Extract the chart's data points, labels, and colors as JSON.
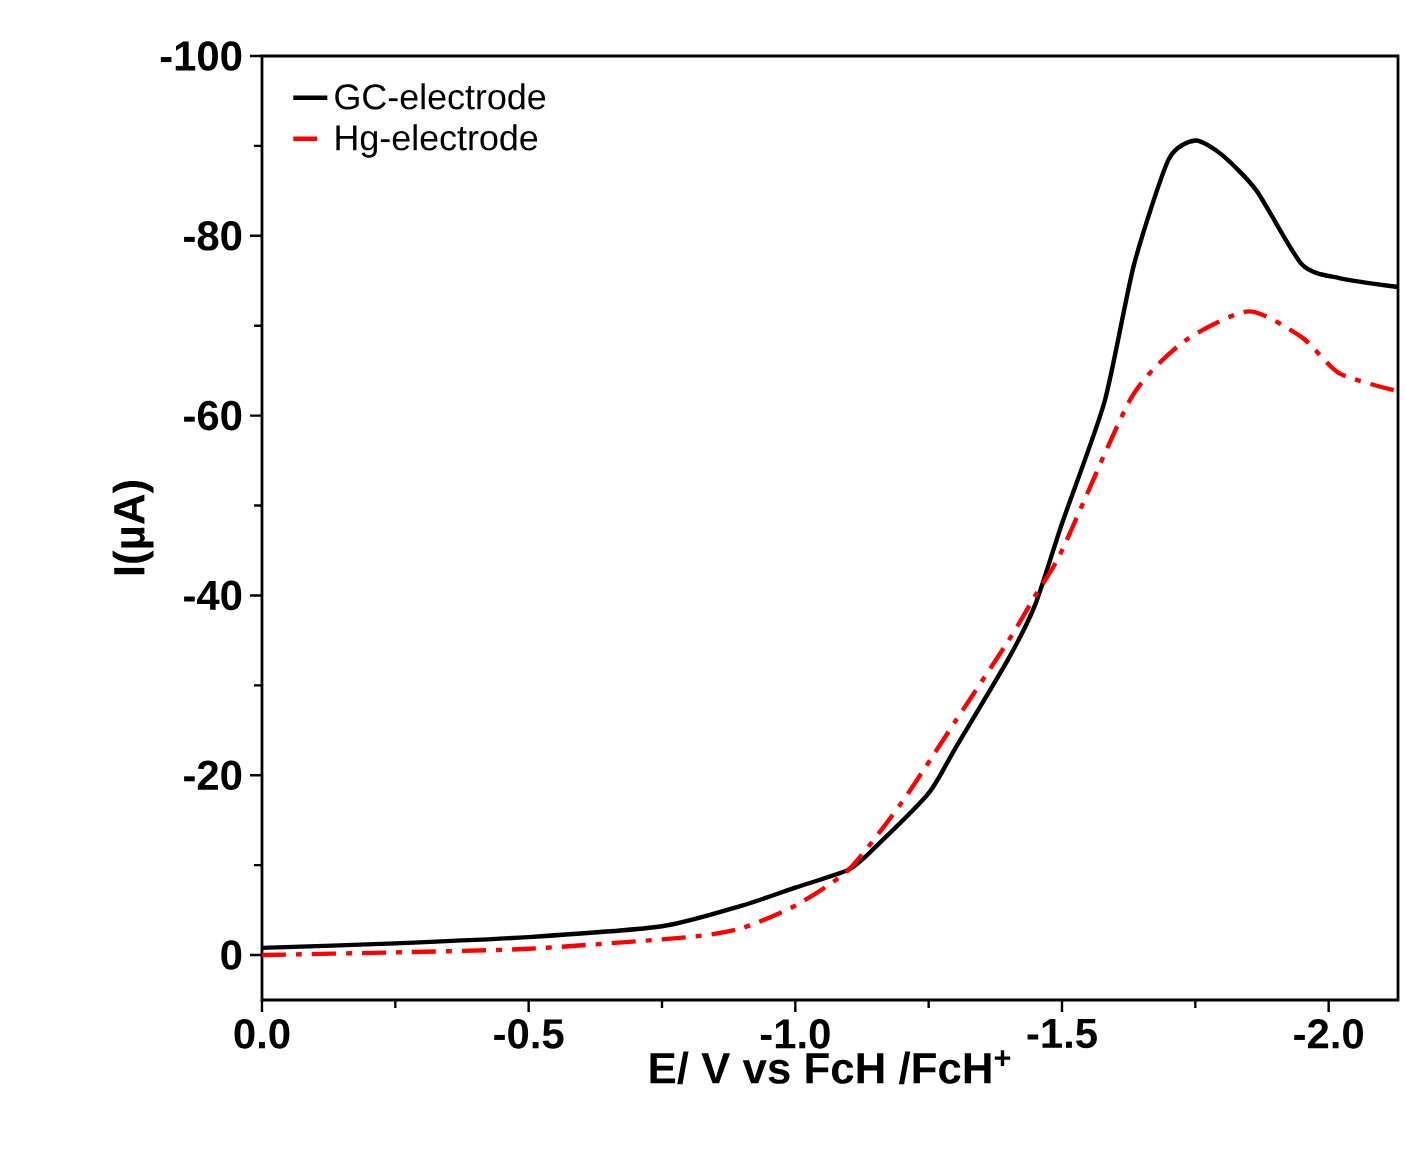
{
  "chart_data": {
    "type": "line",
    "xlabel": "E/ V vs FcH /FcH$^{+}$",
    "ylabel": "I(µA)",
    "xlim": [
      0,
      -2.13
    ],
    "ylim": [
      5,
      -100
    ],
    "xticks": [
      {
        "value": 0,
        "label": "0.0"
      },
      {
        "value": -0.5,
        "label": "-0.5"
      },
      {
        "value": -1,
        "label": "-1.0"
      },
      {
        "value": -1.5,
        "label": "-1.5"
      },
      {
        "value": -2,
        "label": "-2.0"
      }
    ],
    "yticks": [
      0,
      -20,
      -40,
      -60,
      -80,
      -100
    ],
    "legend": "top left",
    "grid": false,
    "marker": "none",
    "series": [
      {
        "name": "GC-electrode",
        "color": "#000000",
        "line_style": "solid",
        "x": [
          0,
          -0.25,
          -0.5,
          -0.75,
          -0.9,
          -1.0,
          -1.1,
          -1.15,
          -1.25,
          -1.3,
          -1.4,
          -1.45,
          -1.5,
          -1.58,
          -1.635,
          -1.7,
          -1.75,
          -1.8,
          -1.865,
          -1.95,
          -2.02,
          -2.13
        ],
        "values": [
          -0.8,
          -1.3,
          -2,
          -3.2,
          -5.5,
          -7.5,
          -9.5,
          -12,
          -18,
          -23,
          -33,
          -39,
          -48,
          -61.6,
          -76.8,
          -88.5,
          -90.6,
          -89,
          -85,
          -76.8,
          -75.3,
          -74.3
        ]
      },
      {
        "name": "Hg-electrode",
        "color": "#ff0000",
        "line_style": "dashdot",
        "x": [
          0,
          -0.25,
          -0.5,
          -0.8,
          -0.9,
          -1.0,
          -1.1,
          -1.2,
          -1.3,
          -1.4,
          -1.45,
          -1.5,
          -1.63,
          -1.73,
          -1.85,
          -1.95,
          -2.02,
          -2.13
        ],
        "values": [
          0,
          -0.3,
          -0.7,
          -2,
          -3,
          -5.5,
          -9.5,
          -17,
          -26,
          -35,
          -40,
          -45,
          -62,
          -68.3,
          -71.6,
          -68.7,
          -64.7,
          -62.7
        ]
      }
    ]
  }
}
